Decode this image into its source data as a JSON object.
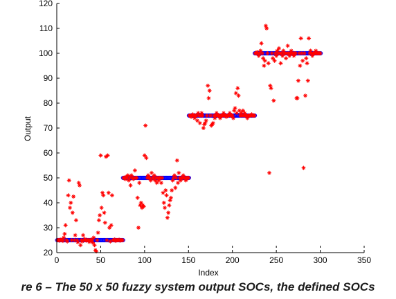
{
  "caption": "re 6 – The 50 x 50 fuzzy system output SOCs, the defined SOCs",
  "chart_data": {
    "type": "scatter",
    "xlabel": "Index",
    "ylabel": "Output",
    "xlim": [
      0,
      350
    ],
    "ylim": [
      20,
      120
    ],
    "x_ticks": [
      0,
      50,
      100,
      150,
      200,
      250,
      300,
      350
    ],
    "y_ticks": [
      20,
      30,
      40,
      50,
      60,
      70,
      80,
      90,
      100,
      110,
      120
    ],
    "grid": false,
    "series": [
      {
        "marker": "circle",
        "color": "#0000ff",
        "segments": [
          {
            "x_start": 1,
            "x_end": 75,
            "y": 25
          },
          {
            "x_start": 76,
            "x_end": 150,
            "y": 50
          },
          {
            "x_start": 151,
            "x_end": 225,
            "y": 75
          },
          {
            "x_start": 226,
            "x_end": 300,
            "y": 100
          }
        ]
      },
      {
        "marker": "star",
        "color": "#ff0000",
        "points": [
          [
            1,
            25
          ],
          [
            2,
            25
          ],
          [
            3,
            24.8
          ],
          [
            4,
            25.2
          ],
          [
            5,
            25
          ],
          [
            6,
            25.3
          ],
          [
            7,
            24.7
          ],
          [
            8,
            26
          ],
          [
            9,
            27.5
          ],
          [
            10,
            31
          ],
          [
            11,
            25
          ],
          [
            12,
            24.5
          ],
          [
            13,
            43
          ],
          [
            14,
            49
          ],
          [
            15,
            38
          ],
          [
            16,
            40
          ],
          [
            17,
            25
          ],
          [
            18,
            36
          ],
          [
            19,
            42.5
          ],
          [
            20,
            25
          ],
          [
            21,
            27
          ],
          [
            22,
            33
          ],
          [
            23,
            25
          ],
          [
            24,
            24.2
          ],
          [
            25,
            48
          ],
          [
            26,
            47
          ],
          [
            27,
            23
          ],
          [
            28,
            25
          ],
          [
            29,
            24.5
          ],
          [
            30,
            27
          ],
          [
            31,
            25
          ],
          [
            32,
            25.5
          ],
          [
            33,
            25
          ],
          [
            34,
            24.8
          ],
          [
            35,
            25
          ],
          [
            36,
            25
          ],
          [
            37,
            24.3
          ],
          [
            38,
            25
          ],
          [
            39,
            25.2
          ],
          [
            40,
            25
          ],
          [
            41,
            24
          ],
          [
            42,
            26
          ],
          [
            43,
            23
          ],
          [
            44,
            21
          ],
          [
            45,
            20.5
          ],
          [
            46,
            25
          ],
          [
            47,
            28
          ],
          [
            48,
            33
          ],
          [
            49,
            35
          ],
          [
            50,
            59
          ],
          [
            51,
            38
          ],
          [
            52,
            44
          ],
          [
            53,
            43
          ],
          [
            54,
            36
          ],
          [
            55,
            32
          ],
          [
            56,
            58.5
          ],
          [
            57,
            25
          ],
          [
            58,
            59
          ],
          [
            59,
            44
          ],
          [
            60,
            30
          ],
          [
            61,
            24.5
          ],
          [
            62,
            31
          ],
          [
            63,
            43
          ],
          [
            64,
            25
          ],
          [
            65,
            25
          ],
          [
            66,
            25.3
          ],
          [
            67,
            24.7
          ],
          [
            68,
            25
          ],
          [
            69,
            25
          ],
          [
            70,
            25
          ],
          [
            71,
            25.2
          ],
          [
            72,
            24.8
          ],
          [
            73,
            25
          ],
          [
            74,
            25
          ],
          [
            75,
            25
          ],
          [
            76,
            50
          ],
          [
            77,
            50
          ],
          [
            78,
            49.5
          ],
          [
            79,
            50.5
          ],
          [
            80,
            50
          ],
          [
            81,
            51
          ],
          [
            82,
            49
          ],
          [
            83,
            50
          ],
          [
            84,
            47
          ],
          [
            85,
            51
          ],
          [
            86,
            50
          ],
          [
            87,
            49.5
          ],
          [
            88,
            50
          ],
          [
            89,
            53
          ],
          [
            90,
            50
          ],
          [
            91,
            50
          ],
          [
            92,
            42
          ],
          [
            93,
            30
          ],
          [
            94,
            48
          ],
          [
            95,
            39
          ],
          [
            96,
            40
          ],
          [
            97,
            38
          ],
          [
            98,
            39
          ],
          [
            99,
            38.5
          ],
          [
            100,
            59
          ],
          [
            101,
            71
          ],
          [
            102,
            58
          ],
          [
            103,
            50
          ],
          [
            104,
            51
          ],
          [
            105,
            50
          ],
          [
            106,
            50
          ],
          [
            107,
            49
          ],
          [
            108,
            52
          ],
          [
            109,
            50
          ],
          [
            110,
            50
          ],
          [
            111,
            51
          ],
          [
            112,
            49
          ],
          [
            113,
            50
          ],
          [
            114,
            48
          ],
          [
            115,
            50
          ],
          [
            116,
            49
          ],
          [
            117,
            50
          ],
          [
            118,
            50
          ],
          [
            119,
            48
          ],
          [
            120,
            50
          ],
          [
            121,
            44
          ],
          [
            122,
            40
          ],
          [
            123,
            38
          ],
          [
            124,
            45
          ],
          [
            125,
            43
          ],
          [
            126,
            34
          ],
          [
            127,
            36
          ],
          [
            128,
            39
          ],
          [
            129,
            41
          ],
          [
            130,
            42
          ],
          [
            131,
            45
          ],
          [
            132,
            49
          ],
          [
            133,
            50
          ],
          [
            134,
            51
          ],
          [
            135,
            46
          ],
          [
            136,
            50
          ],
          [
            137,
            57
          ],
          [
            138,
            48
          ],
          [
            139,
            52
          ],
          [
            140,
            50
          ],
          [
            141,
            49
          ],
          [
            142,
            50
          ],
          [
            143,
            50
          ],
          [
            144,
            51
          ],
          [
            145,
            50
          ],
          [
            146,
            50
          ],
          [
            147,
            49
          ],
          [
            148,
            50
          ],
          [
            149,
            50
          ],
          [
            150,
            50
          ],
          [
            151,
            75
          ],
          [
            152,
            75
          ],
          [
            153,
            74.5
          ],
          [
            154,
            75
          ],
          [
            155,
            75.5
          ],
          [
            156,
            75
          ],
          [
            157,
            74
          ],
          [
            158,
            75
          ],
          [
            159,
            75
          ],
          [
            160,
            73
          ],
          [
            161,
            76
          ],
          [
            162,
            75
          ],
          [
            163,
            72
          ],
          [
            164,
            75
          ],
          [
            165,
            76
          ],
          [
            166,
            75
          ],
          [
            167,
            70
          ],
          [
            168,
            71.5
          ],
          [
            169,
            72
          ],
          [
            170,
            73
          ],
          [
            171,
            75
          ],
          [
            172,
            87
          ],
          [
            173,
            82
          ],
          [
            174,
            85
          ],
          [
            175,
            75
          ],
          [
            176,
            71
          ],
          [
            177,
            71.5
          ],
          [
            178,
            72
          ],
          [
            179,
            75
          ],
          [
            180,
            74
          ],
          [
            181,
            75
          ],
          [
            182,
            76
          ],
          [
            183,
            75
          ],
          [
            184,
            75
          ],
          [
            185,
            75
          ],
          [
            186,
            74
          ],
          [
            187,
            75
          ],
          [
            188,
            75
          ],
          [
            189,
            75
          ],
          [
            190,
            76
          ],
          [
            191,
            75
          ],
          [
            192,
            75
          ],
          [
            193,
            74.5
          ],
          [
            194,
            75
          ],
          [
            195,
            75
          ],
          [
            196,
            75
          ],
          [
            197,
            76
          ],
          [
            198,
            75
          ],
          [
            199,
            75
          ],
          [
            200,
            75
          ],
          [
            201,
            74
          ],
          [
            202,
            77
          ],
          [
            203,
            78
          ],
          [
            204,
            84
          ],
          [
            205,
            76
          ],
          [
            206,
            86
          ],
          [
            207,
            83
          ],
          [
            208,
            77
          ],
          [
            209,
            75
          ],
          [
            210,
            76
          ],
          [
            211,
            75
          ],
          [
            212,
            77
          ],
          [
            213,
            75
          ],
          [
            214,
            76
          ],
          [
            215,
            75
          ],
          [
            216,
            75
          ],
          [
            217,
            74
          ],
          [
            218,
            75
          ],
          [
            219,
            75
          ],
          [
            220,
            75
          ],
          [
            221,
            75
          ],
          [
            222,
            75.5
          ],
          [
            223,
            75
          ],
          [
            224,
            75
          ],
          [
            225,
            75
          ],
          [
            226,
            100
          ],
          [
            227,
            100
          ],
          [
            228,
            100.5
          ],
          [
            229,
            100
          ],
          [
            230,
            99
          ],
          [
            231,
            100
          ],
          [
            232,
            101
          ],
          [
            233,
            104
          ],
          [
            234,
            100
          ],
          [
            235,
            98
          ],
          [
            236,
            95
          ],
          [
            237,
            97
          ],
          [
            238,
            111
          ],
          [
            239,
            110
          ],
          [
            240,
            100
          ],
          [
            241,
            96
          ],
          [
            242,
            52
          ],
          [
            243,
            87
          ],
          [
            244,
            86
          ],
          [
            245,
            100
          ],
          [
            246,
            98
          ],
          [
            247,
            81
          ],
          [
            248,
            97
          ],
          [
            249,
            100
          ],
          [
            250,
            99
          ],
          [
            251,
            101
          ],
          [
            252,
            100
          ],
          [
            253,
            102
          ],
          [
            254,
            100
          ],
          [
            255,
            96
          ],
          [
            256,
            100
          ],
          [
            257,
            99
          ],
          [
            258,
            101
          ],
          [
            259,
            100
          ],
          [
            260,
            100
          ],
          [
            261,
            98
          ],
          [
            262,
            100
          ],
          [
            263,
            103
          ],
          [
            264,
            100
          ],
          [
            265,
            99
          ],
          [
            266,
            100
          ],
          [
            267,
            101
          ],
          [
            268,
            100
          ],
          [
            269,
            100
          ],
          [
            270,
            99
          ],
          [
            271,
            100
          ],
          [
            272,
            100
          ],
          [
            273,
            82
          ],
          [
            274,
            82
          ],
          [
            275,
            89
          ],
          [
            276,
            100
          ],
          [
            277,
            95
          ],
          [
            278,
            106
          ],
          [
            279,
            100
          ],
          [
            280,
            97
          ],
          [
            281,
            54
          ],
          [
            282,
            100
          ],
          [
            283,
            83
          ],
          [
            284,
            98
          ],
          [
            285,
            96
          ],
          [
            286,
            89
          ],
          [
            287,
            106
          ],
          [
            288,
            100
          ],
          [
            289,
            101
          ],
          [
            290,
            100
          ],
          [
            291,
            99
          ],
          [
            292,
            100
          ],
          [
            293,
            100
          ],
          [
            294,
            100
          ],
          [
            295,
            101
          ],
          [
            296,
            100
          ],
          [
            297,
            100
          ],
          [
            298,
            100
          ],
          [
            299,
            100
          ],
          [
            300,
            100
          ]
        ]
      }
    ]
  }
}
